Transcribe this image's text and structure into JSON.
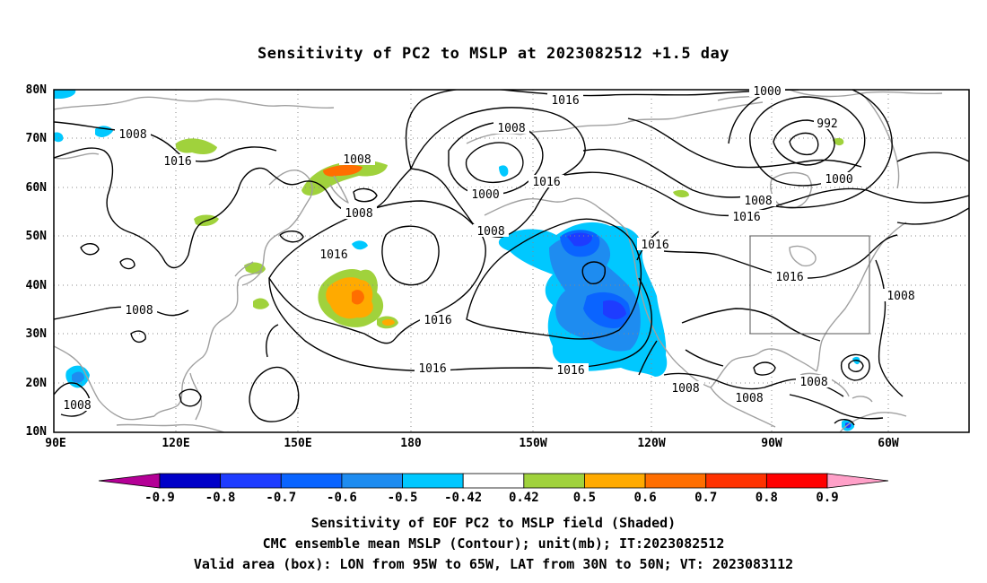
{
  "title": "Sensitivity of PC2 to MSLP at 2023082512 +1.5 day",
  "lat_labels": [
    "80N",
    "70N",
    "60N",
    "50N",
    "40N",
    "30N",
    "20N",
    "10N"
  ],
  "lon_labels": [
    "90E",
    "120E",
    "150E",
    "180",
    "150W",
    "120W",
    "90W",
    "60W"
  ],
  "contour_labels": [
    "1016",
    "1008",
    "1000",
    "992",
    "1000",
    "1008",
    "1016",
    "1008",
    "1016",
    "1008",
    "1000",
    "1016",
    "1008",
    "1016",
    "1016",
    "1016",
    "1016",
    "1008",
    "1016",
    "1016",
    "1008",
    "1008",
    "1008",
    "1008"
  ],
  "colorbar": {
    "labels": [
      "-0.9",
      "-0.8",
      "-0.7",
      "-0.6",
      "-0.5",
      "-0.42",
      "0.42",
      "0.5",
      "0.6",
      "0.7",
      "0.8",
      "0.9"
    ],
    "colors": [
      "#b40096",
      "#0000c8",
      "#1e3cff",
      "#0a64ff",
      "#1e8cf0",
      "#00c8ff",
      "#ffffff",
      "#a0d23c",
      "#ffaa00",
      "#ff6e00",
      "#ff3200",
      "#ff0000",
      "#ffa0c8"
    ]
  },
  "captions": {
    "line1": "Sensitivity of EOF PC2 to MSLP field (Shaded)",
    "line2": "CMC ensemble mean MSLP (Contour); unit(mb); IT:2023082512",
    "line3": "Valid area (box): LON from 95W to 65W, LAT from 30N to 50N; VT: 2023083112"
  },
  "colors": {
    "contour": "#000000",
    "coastline": "#a0a0a0",
    "grid": "#888888",
    "valid_box": "#555555"
  }
}
